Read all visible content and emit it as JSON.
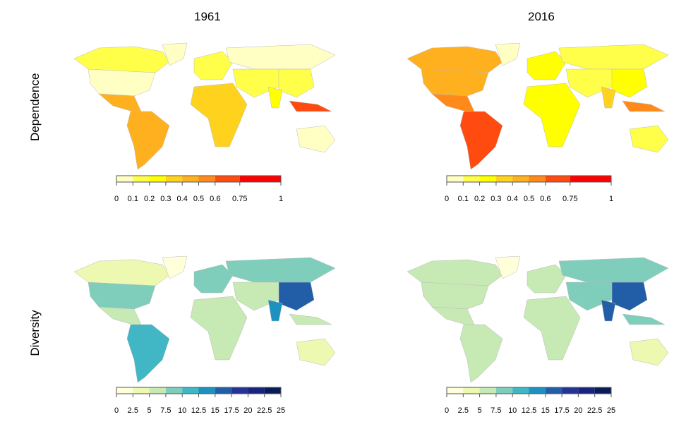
{
  "columns": [
    "1961",
    "2016"
  ],
  "rows": [
    "Dependence",
    "Diversity"
  ],
  "chart_data": [
    {
      "type": "choropleth",
      "variable": "Dependence",
      "year": "1961",
      "legend": {
        "breaks": [
          0,
          0.1,
          0.2,
          0.3,
          0.4,
          0.5,
          0.6,
          0.75,
          1
        ],
        "labels": [
          "0",
          "0.1",
          "0.2",
          "0.3",
          "0.4",
          "0.5",
          "0.6",
          "0.75",
          "1"
        ],
        "colors": [
          "#ffffc4",
          "#ffff4a",
          "#ffff00",
          "#ffd21e",
          "#ffb01e",
          "#ff8a1a",
          "#ff4a10",
          "#ff0000"
        ]
      },
      "regions": {
        "canada": 0.1,
        "greenland": 0.05,
        "us": 0.05,
        "mexico": 0.4,
        "southamerica": 0.45,
        "europe": 0.1,
        "africa": 0.3,
        "russia": 0.05,
        "mideast": 0.1,
        "china": 0.15,
        "india": 0.2,
        "seasia": 0.6,
        "australia": 0.05
      }
    },
    {
      "type": "choropleth",
      "variable": "Dependence",
      "year": "2016",
      "legend": {
        "breaks": [
          0,
          0.1,
          0.2,
          0.3,
          0.4,
          0.5,
          0.6,
          0.75,
          1
        ],
        "labels": [
          "0",
          "0.1",
          "0.2",
          "0.3",
          "0.4",
          "0.5",
          "0.6",
          "0.75",
          "1"
        ],
        "colors": [
          "#ffffc4",
          "#ffff4a",
          "#ffff00",
          "#ffd21e",
          "#ffb01e",
          "#ff8a1a",
          "#ff4a10",
          "#ff0000"
        ]
      },
      "regions": {
        "canada": 0.4,
        "greenland": 0.05,
        "us": 0.45,
        "mexico": 0.5,
        "southamerica": 0.6,
        "europe": 0.2,
        "africa": 0.25,
        "russia": 0.1,
        "mideast": 0.15,
        "china": 0.2,
        "india": 0.3,
        "seasia": 0.5,
        "australia": 0.15
      }
    },
    {
      "type": "choropleth",
      "variable": "Diversity",
      "year": "1961",
      "legend": {
        "breaks": [
          0,
          2.5,
          5,
          7.5,
          10,
          12.5,
          15,
          17.5,
          20,
          22.5,
          25
        ],
        "labels": [
          "0",
          "2.5",
          "5",
          "7.5",
          "10",
          "12.5",
          "15",
          "17.5",
          "20",
          "22.5",
          "25"
        ],
        "colors": [
          "#ffffd9",
          "#edf8b1",
          "#c7e9b4",
          "#7fcdbb",
          "#41b6c4",
          "#1d91c0",
          "#225ea8",
          "#253494",
          "#1a237e",
          "#081d58"
        ]
      },
      "regions": {
        "canada": 4,
        "greenland": 0,
        "us": 8,
        "mexico": 6,
        "southamerica": 10,
        "europe": 8,
        "africa": 5,
        "russia": 8,
        "mideast": 6,
        "china": 15,
        "india": 14,
        "seasia": 5,
        "australia": 4
      }
    },
    {
      "type": "choropleth",
      "variable": "Diversity",
      "year": "2016",
      "legend": {
        "breaks": [
          0,
          2.5,
          5,
          7.5,
          10,
          12.5,
          15,
          17.5,
          20,
          22.5,
          25
        ],
        "labels": [
          "0",
          "2.5",
          "5",
          "7.5",
          "10",
          "12.5",
          "15",
          "17.5",
          "20",
          "22.5",
          "25"
        ],
        "colors": [
          "#ffffd9",
          "#edf8b1",
          "#c7e9b4",
          "#7fcdbb",
          "#41b6c4",
          "#1d91c0",
          "#225ea8",
          "#253494",
          "#1a237e",
          "#081d58"
        ]
      },
      "regions": {
        "canada": 5,
        "greenland": 0,
        "us": 6,
        "mexico": 7,
        "southamerica": 7,
        "europe": 7,
        "africa": 6,
        "russia": 8,
        "mideast": 8,
        "china": 16,
        "india": 16,
        "seasia": 8,
        "australia": 4
      }
    }
  ]
}
